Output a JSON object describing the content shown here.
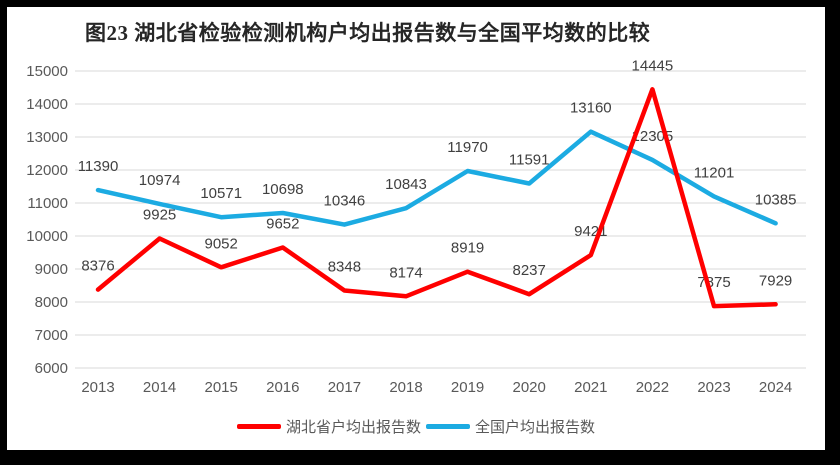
{
  "title": "图23 湖北省检验检测机构户均出报告数与全国平均数的比较",
  "chart_data": {
    "type": "line",
    "title": "图23 湖北省检验检测机构户均出报告数与全国平均数的比较",
    "categories": [
      "2013",
      "2014",
      "2015",
      "2016",
      "2017",
      "2018",
      "2019",
      "2020",
      "2021",
      "2022",
      "2023",
      "2024"
    ],
    "series": [
      {
        "name": "湖北省户均出报告数",
        "color": "#FF0000",
        "values": [
          8376,
          9925,
          9052,
          9652,
          8348,
          8174,
          8919,
          8237,
          9421,
          14445,
          7875,
          7929
        ]
      },
      {
        "name": "全国户均出报告数",
        "color": "#1CABE2",
        "values": [
          11390,
          10974,
          10571,
          10698,
          10346,
          10843,
          11970,
          11591,
          13160,
          12305,
          11201,
          10385
        ]
      }
    ],
    "y_axis": {
      "min": 6000,
      "max": 15000,
      "step": 1000,
      "tick_labels": [
        "6000",
        "7000",
        "8000",
        "9000",
        "10000",
        "11000",
        "12000",
        "13000",
        "14000",
        "15000"
      ]
    },
    "x_axis": {
      "tick_labels": [
        "2013",
        "2014",
        "2015",
        "2016",
        "2017",
        "2018",
        "2019",
        "2020",
        "2021",
        "2022",
        "2023",
        "2024"
      ]
    },
    "grid": true,
    "data_labels": true,
    "legend_position": "bottom",
    "colors": {
      "gridline": "#D9D9D9",
      "axis_text": "#595959",
      "data_label_text": "#404040",
      "title_text": "#262626",
      "frame_border": "#000000",
      "background": "#FFFFFF"
    }
  }
}
